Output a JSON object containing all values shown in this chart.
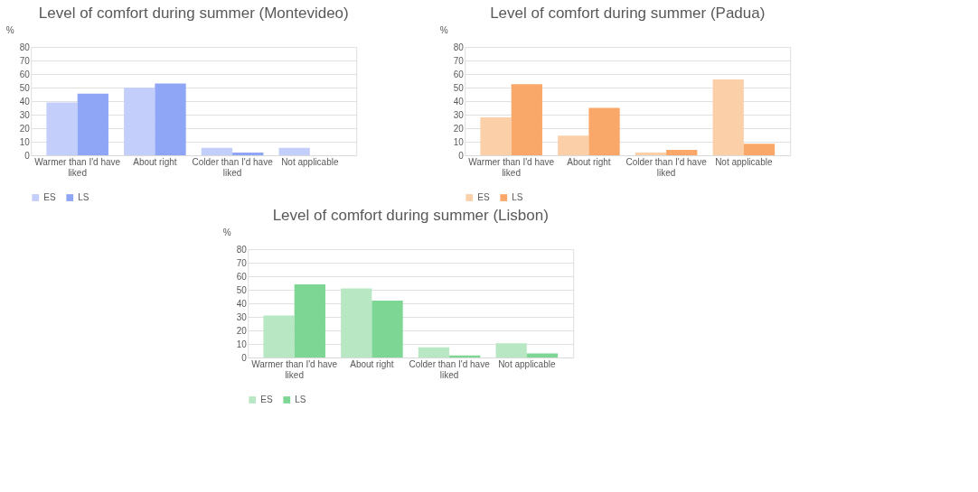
{
  "chart_data": [
    {
      "type": "bar",
      "title": "Level of comfort during summer (Montevideo)",
      "ylabel": "%",
      "categories": [
        "Warmer than I'd have liked",
        "About right",
        "Colder than I'd have liked",
        "Not applicable"
      ],
      "series": [
        {
          "name": "ES",
          "color": "#c3cefa",
          "values": [
            39,
            50,
            5.5,
            5.5
          ]
        },
        {
          "name": "LS",
          "color": "#8fa5f5",
          "values": [
            45.5,
            53,
            2,
            null
          ]
        }
      ],
      "ylim": [
        0,
        80
      ],
      "yticks": [
        0,
        10,
        20,
        30,
        40,
        50,
        60,
        70,
        80
      ],
      "grid": "y",
      "legend": "bottom"
    },
    {
      "type": "bar",
      "title": "Level of comfort during summer (Padua)",
      "ylabel": "%",
      "categories": [
        "Warmer than I'd have liked",
        "About right",
        "Colder than I'd have liked",
        "Not applicable"
      ],
      "series": [
        {
          "name": "ES",
          "color": "#fbcfa8",
          "values": [
            28,
            14.5,
            2,
            56
          ]
        },
        {
          "name": "LS",
          "color": "#f9a869",
          "values": [
            52.5,
            35,
            4,
            8.5
          ]
        }
      ],
      "ylim": [
        0,
        80
      ],
      "yticks": [
        0,
        10,
        20,
        30,
        40,
        50,
        60,
        70,
        80
      ],
      "grid": "y",
      "legend": "bottom"
    },
    {
      "type": "bar",
      "title": "Level of comfort during summer (Lisbon)",
      "ylabel": "%",
      "categories": [
        "Warmer than I'd have liked",
        "About right",
        "Colder than I'd have liked",
        "Not applicable"
      ],
      "series": [
        {
          "name": "ES",
          "color": "#b8e8c3",
          "values": [
            31,
            51,
            7.5,
            10.5
          ]
        },
        {
          "name": "LS",
          "color": "#7dd694",
          "values": [
            54,
            42,
            1.5,
            3
          ]
        }
      ],
      "ylim": [
        0,
        80
      ],
      "yticks": [
        0,
        10,
        20,
        30,
        40,
        50,
        60,
        70,
        80
      ],
      "grid": "y",
      "legend": "bottom"
    }
  ]
}
